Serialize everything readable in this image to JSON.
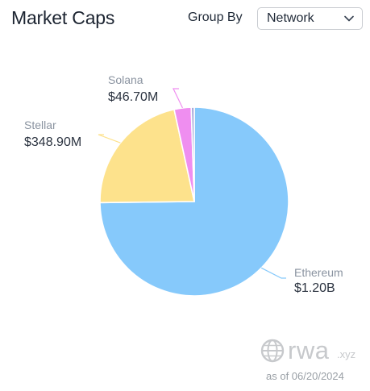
{
  "header": {
    "title": "Market Caps",
    "group_by_label": "Group By",
    "group_by_value": "Network"
  },
  "chart_data": {
    "type": "pie",
    "slices": [
      {
        "name": "Ethereum",
        "label": "$1.20B",
        "value": 1.2,
        "color": "#86c9fb"
      },
      {
        "name": "Stellar",
        "label": "$348.90M",
        "value": 0.3489,
        "color": "#fde28c"
      },
      {
        "name": "Solana",
        "label": "$46.70M",
        "value": 0.0467,
        "color": "#ef8ef0"
      },
      {
        "name": "",
        "label": "",
        "value": 0.0083,
        "color": "#a7a9d9"
      }
    ],
    "unit": "USD billions"
  },
  "watermark": {
    "brand": "rwa",
    "suffix": ".xyz",
    "as_of": "as of 06/20/2024"
  }
}
